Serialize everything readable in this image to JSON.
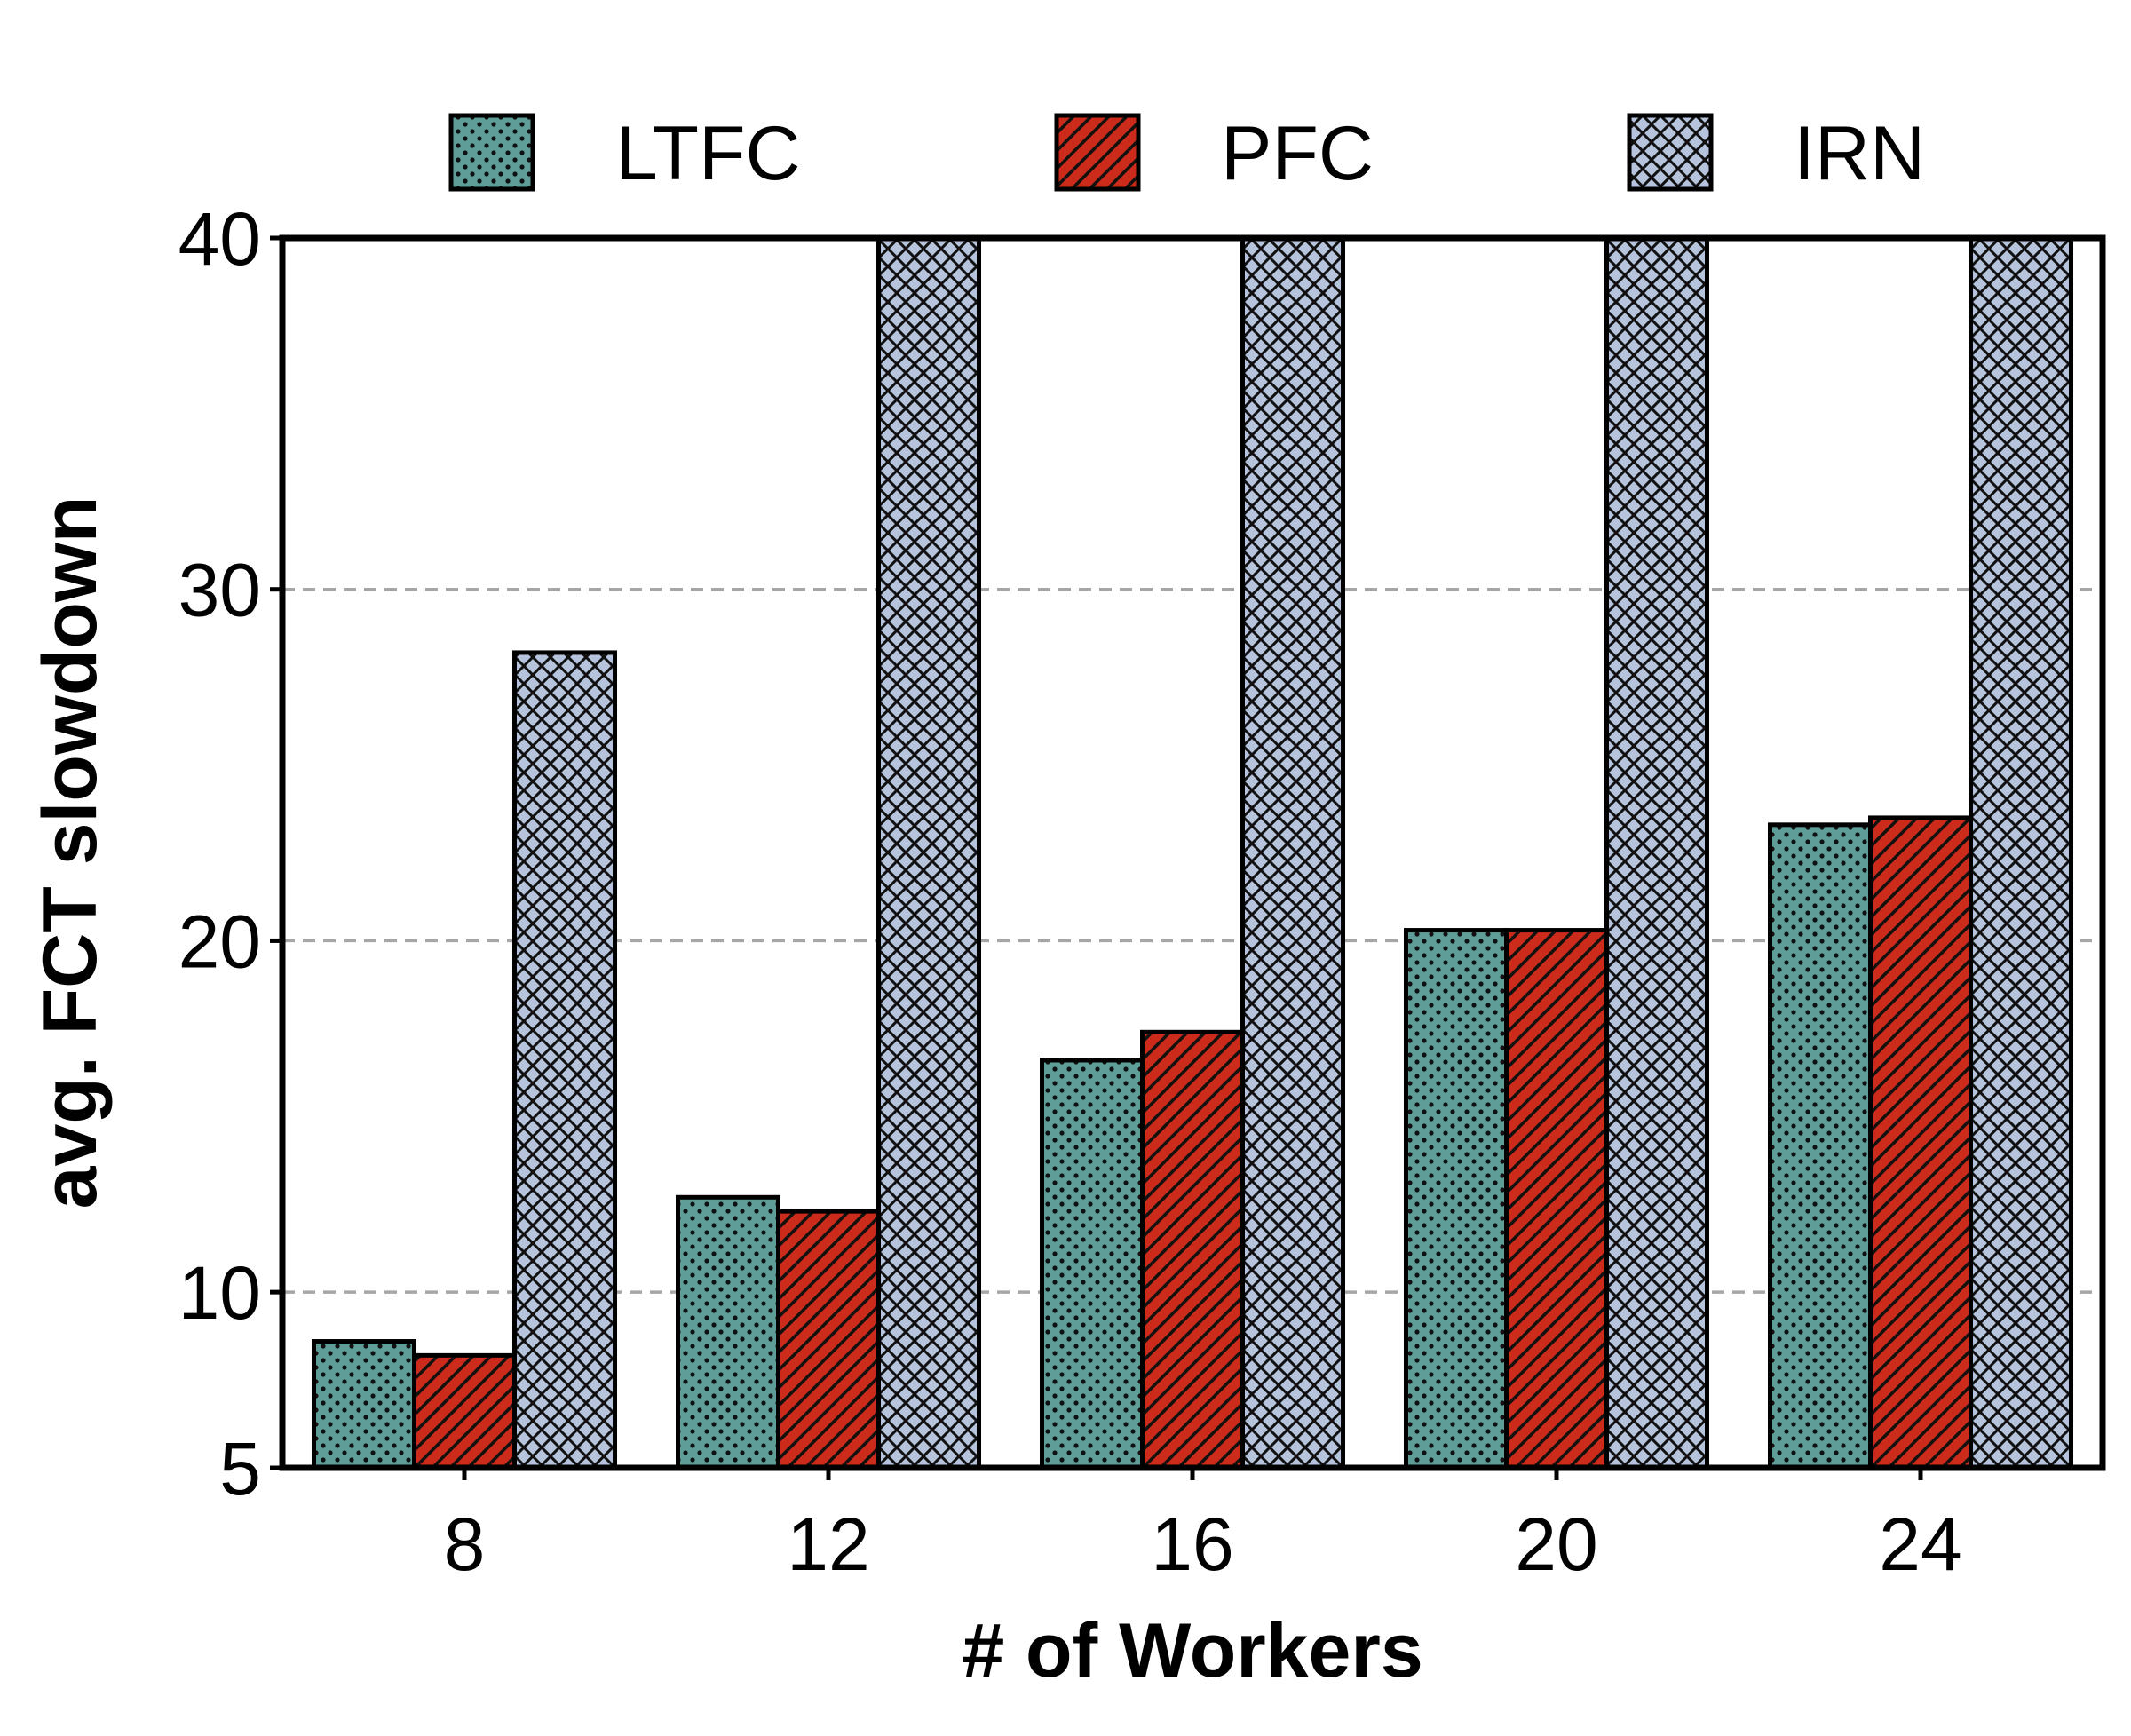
{
  "chart_data": {
    "type": "bar",
    "title": "",
    "xlabel": "# of Workers",
    "ylabel": "avg. FCT slowdown",
    "categories": [
      "8",
      "12",
      "16",
      "20",
      "24"
    ],
    "ylim": [
      5,
      40
    ],
    "yticks": [
      5,
      10,
      20,
      30,
      40
    ],
    "grid": "horizontal dashed",
    "legend_position": "top",
    "series": [
      {
        "name": "LTFC",
        "values": [
          8.6,
          12.7,
          16.6,
          20.3,
          23.3
        ],
        "color": "#5f9e98",
        "pattern": "dots"
      },
      {
        "name": "PFC",
        "values": [
          8.2,
          12.3,
          17.4,
          20.3,
          23.5
        ],
        "color": "#cc2a1a",
        "pattern": "diagonal-hatch"
      },
      {
        "name": "IRN",
        "values": [
          28.2,
          40,
          40,
          40,
          40
        ],
        "color": "#b6c3dc",
        "pattern": "cross-hatch"
      }
    ]
  }
}
